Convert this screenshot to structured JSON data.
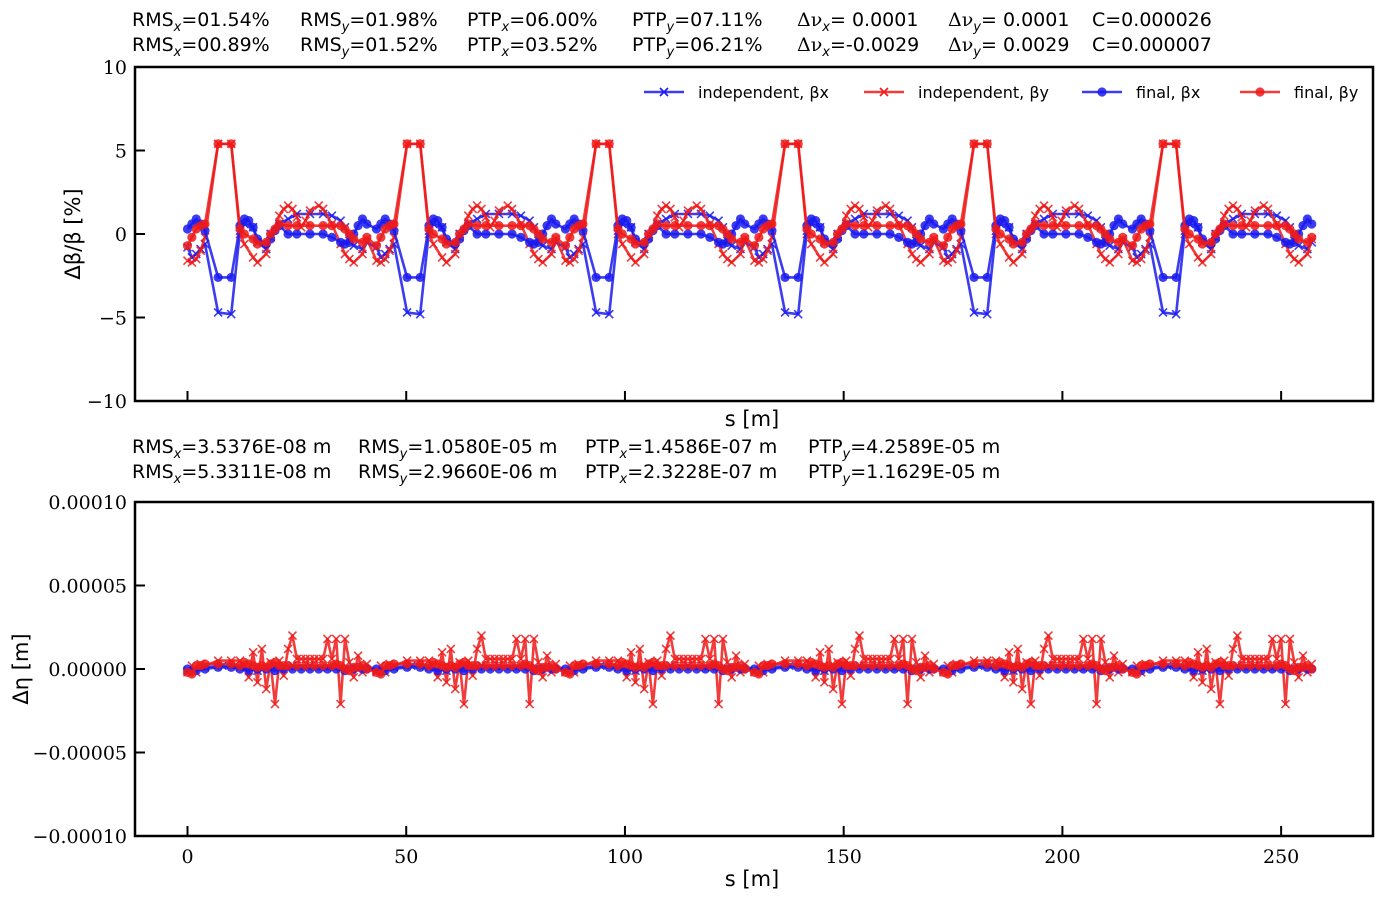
{
  "colors": {
    "blue": "#1a1aee",
    "red": "#ee1a1a",
    "axis": "#000000"
  },
  "top_stats": [
    {
      "rms_x": "01.54%",
      "rms_y": "01.98%",
      "ptp_x": "06.00%",
      "ptp_y": "07.11%",
      "dnu_x": "= 0.0001",
      "dnu_y": "= 0.0001",
      "c": "C=0.000026"
    },
    {
      "rms_x": "00.89%",
      "rms_y": "01.52%",
      "ptp_x": "03.52%",
      "ptp_y": "06.21%",
      "dnu_x": "=-0.0029",
      "dnu_y": "= 0.0029",
      "c": "C=0.000007"
    }
  ],
  "bottom_stats": [
    {
      "rms_x": "=3.5376E-08 m",
      "rms_y": "=1.0580E-05 m",
      "ptp_x": "=1.4586E-07 m",
      "ptp_y": "=4.2589E-05 m"
    },
    {
      "rms_x": "=5.3311E-08 m",
      "rms_y": "=2.9660E-06 m",
      "ptp_x": "=2.3228E-07 m",
      "ptp_y": "=1.1629E-05 m"
    }
  ],
  "labels": {
    "rms": "RMS",
    "ptp": "PTP",
    "sub_x": "x",
    "sub_y": "y",
    "eq": "=",
    "delta": "Δν",
    "dnu_x_sub": "x",
    "dnu_y_sub": "y"
  },
  "chart_data": [
    {
      "type": "line",
      "title": "",
      "xlabel": "s [m]",
      "ylabel": "Δβ/β [%]",
      "xlim": [
        -12,
        271
      ],
      "ylim": [
        -10,
        10
      ],
      "yticks": [
        -10,
        -5,
        0,
        5,
        10
      ],
      "ytick_labels": [
        "−10",
        "−5",
        "0",
        "5",
        "10"
      ],
      "xticks": [
        0,
        50,
        100,
        150,
        200,
        250
      ],
      "xtick_labels": [],
      "legend": [
        "independent, βx",
        "independent, βy",
        "final, βx",
        "final, βy"
      ],
      "legend_placement": "top-right",
      "n_cells": 6,
      "cell_length": 43.2,
      "series": [
        {
          "name": "independent, βx",
          "color": "blue",
          "marker": "x",
          "cell": [
            [
              0,
              -0.8
            ],
            [
              1,
              -1.4
            ],
            [
              2,
              -1.2
            ],
            [
              3,
              -0.9
            ],
            [
              4,
              -0.6
            ],
            [
              7,
              -4.7
            ],
            [
              10,
              -4.8
            ],
            [
              12,
              0.2
            ],
            [
              13,
              0.6
            ],
            [
              15,
              0.4
            ],
            [
              16,
              -0.5
            ],
            [
              18,
              -0.9
            ],
            [
              19,
              0.0
            ],
            [
              21,
              0.6
            ],
            [
              23,
              0.9
            ],
            [
              25,
              1.2
            ],
            [
              28,
              1.2
            ],
            [
              31,
              1.2
            ],
            [
              33,
              1.1
            ],
            [
              35,
              0.8
            ],
            [
              36,
              0.4
            ],
            [
              37,
              -0.4
            ],
            [
              38,
              -0.7
            ],
            [
              40,
              -0.9
            ],
            [
              41,
              -0.5
            ]
          ]
        },
        {
          "name": "independent, βy",
          "color": "red",
          "marker": "x",
          "cell": [
            [
              0,
              -1.6
            ],
            [
              1,
              -1.7
            ],
            [
              2,
              -1.5
            ],
            [
              3,
              -1.0
            ],
            [
              4,
              -0.2
            ],
            [
              7,
              5.4
            ],
            [
              10,
              5.4
            ],
            [
              12,
              0.0
            ],
            [
              13,
              -0.6
            ],
            [
              15,
              -1.4
            ],
            [
              16,
              -1.7
            ],
            [
              18,
              -1.2
            ],
            [
              19,
              -0.2
            ],
            [
              21,
              1.1
            ],
            [
              22,
              1.5
            ],
            [
              23,
              1.7
            ],
            [
              24,
              1.5
            ],
            [
              25,
              1.0
            ],
            [
              26,
              0.4
            ],
            [
              27,
              0.8
            ],
            [
              28,
              1.4
            ],
            [
              30,
              1.7
            ],
            [
              31,
              1.5
            ],
            [
              33,
              0.6
            ],
            [
              35,
              -0.6
            ],
            [
              36,
              -1.2
            ],
            [
              37,
              -1.5
            ],
            [
              38,
              -1.7
            ],
            [
              40,
              -1.2
            ],
            [
              41,
              -0.3
            ]
          ]
        },
        {
          "name": "final, βx",
          "color": "blue",
          "marker": "o",
          "cell": [
            [
              0,
              0.3
            ],
            [
              1,
              0.6
            ],
            [
              2,
              0.9
            ],
            [
              3,
              0.6
            ],
            [
              4,
              0.2
            ],
            [
              7,
              -2.6
            ],
            [
              10,
              -2.6
            ],
            [
              12,
              0.5
            ],
            [
              13,
              0.9
            ],
            [
              14,
              0.8
            ],
            [
              15,
              0.4
            ],
            [
              16,
              -0.3
            ],
            [
              18,
              -0.6
            ],
            [
              19,
              -0.3
            ],
            [
              20,
              0.2
            ],
            [
              21,
              0.5
            ],
            [
              23,
              0.0
            ],
            [
              25,
              0.0
            ],
            [
              28,
              0.0
            ],
            [
              31,
              0.0
            ],
            [
              33,
              -0.2
            ],
            [
              35,
              -0.5
            ],
            [
              36,
              -0.6
            ],
            [
              37,
              -0.5
            ],
            [
              38,
              0.0
            ],
            [
              39,
              0.5
            ],
            [
              40,
              0.9
            ],
            [
              41,
              0.6
            ]
          ]
        },
        {
          "name": "final, βy",
          "color": "red",
          "marker": "o",
          "cell": [
            [
              0,
              -0.7
            ],
            [
              1,
              -0.2
            ],
            [
              2,
              0.3
            ],
            [
              3,
              0.5
            ],
            [
              4,
              0.6
            ],
            [
              7,
              5.4
            ],
            [
              10,
              5.4
            ],
            [
              12,
              0.3
            ],
            [
              13,
              0.0
            ],
            [
              15,
              -0.3
            ],
            [
              16,
              -0.6
            ],
            [
              18,
              -0.5
            ],
            [
              19,
              0.0
            ],
            [
              20,
              0.3
            ],
            [
              21,
              0.6
            ],
            [
              23,
              0.5
            ],
            [
              25,
              0.5
            ],
            [
              28,
              0.5
            ],
            [
              31,
              0.5
            ],
            [
              33,
              0.5
            ],
            [
              35,
              0.5
            ],
            [
              36,
              0.3
            ],
            [
              37,
              0.0
            ],
            [
              38,
              -0.3
            ],
            [
              40,
              -0.5
            ],
            [
              41,
              -0.2
            ]
          ]
        }
      ]
    },
    {
      "type": "line",
      "title": "",
      "xlabel": "s [m]",
      "ylabel": "Δη [m]",
      "xlim": [
        -12,
        271
      ],
      "ylim": [
        -0.0001,
        0.0001
      ],
      "yticks": [
        -0.0001,
        -5e-05,
        0,
        5e-05,
        0.0001
      ],
      "ytick_labels": [
        "−0.00010",
        "−0.00005",
        "0.00000",
        "0.00005",
        "0.00010"
      ],
      "xticks": [
        0,
        50,
        100,
        150,
        200,
        250
      ],
      "xtick_labels": [
        "0",
        "50",
        "100",
        "150",
        "200",
        "250"
      ],
      "n_cells": 6,
      "cell_length": 43.2,
      "series": [
        {
          "name": "independent, βx",
          "color": "blue",
          "marker": "x",
          "cell": [
            [
              0,
              -1e-06
            ],
            [
              4,
              1e-06
            ],
            [
              8,
              2e-06
            ],
            [
              12,
              1e-06
            ],
            [
              16,
              -1e-06
            ],
            [
              20,
              1e-06
            ],
            [
              24,
              2e-06
            ],
            [
              28,
              2e-06
            ],
            [
              32,
              1e-06
            ],
            [
              36,
              0.0
            ],
            [
              40,
              1e-06
            ]
          ]
        },
        {
          "name": "independent, βy",
          "color": "red",
          "marker": "x",
          "cell": [
            [
              0,
              -2e-06
            ],
            [
              1,
              2e-06
            ],
            [
              2,
              -2e-06
            ],
            [
              3,
              3e-06
            ],
            [
              4,
              2e-06
            ],
            [
              7,
              5e-06
            ],
            [
              10,
              5e-06
            ],
            [
              12,
              5e-06
            ],
            [
              13,
              2e-06
            ],
            [
              14,
              -5e-06
            ],
            [
              15,
              1e-05
            ],
            [
              16,
              -8e-06
            ],
            [
              17,
              1.2e-05
            ],
            [
              18,
              -1.2e-05
            ],
            [
              19,
              4e-06
            ],
            [
              20,
              -2.1e-05
            ],
            [
              21,
              5e-06
            ],
            [
              22,
              -4e-06
            ],
            [
              23,
              1.2e-05
            ],
            [
              24,
              2e-05
            ],
            [
              25,
              6e-06
            ],
            [
              26,
              6e-06
            ],
            [
              27,
              6e-06
            ],
            [
              28,
              6e-06
            ],
            [
              29,
              6e-06
            ],
            [
              30,
              6e-06
            ],
            [
              31,
              6e-06
            ],
            [
              32,
              1.8e-05
            ],
            [
              33,
              6e-06
            ],
            [
              34,
              1.8e-05
            ],
            [
              35,
              -2.1e-05
            ],
            [
              36,
              1.8e-05
            ],
            [
              37,
              4e-06
            ],
            [
              38,
              -5e-06
            ],
            [
              39,
              8e-06
            ],
            [
              40,
              -2e-06
            ],
            [
              41,
              3e-06
            ]
          ]
        },
        {
          "name": "final, βx",
          "color": "blue",
          "marker": "o",
          "cell": [
            [
              0,
              0.0
            ],
            [
              2,
              -1e-06
            ],
            [
              4,
              0.0
            ],
            [
              7,
              1e-06
            ],
            [
              10,
              1e-06
            ],
            [
              12,
              0.0
            ],
            [
              14,
              -1e-06
            ],
            [
              16,
              0.0
            ],
            [
              18,
              0.0
            ],
            [
              20,
              -1e-06
            ],
            [
              22,
              0.0
            ],
            [
              24,
              0.0
            ],
            [
              26,
              0.0
            ],
            [
              28,
              0.0
            ],
            [
              30,
              0.0
            ],
            [
              32,
              0.0
            ],
            [
              34,
              0.0
            ],
            [
              36,
              -1e-06
            ],
            [
              38,
              0.0
            ],
            [
              40,
              0.0
            ],
            [
              41,
              0.0
            ]
          ]
        },
        {
          "name": "final, βy",
          "color": "red",
          "marker": "o",
          "cell": [
            [
              0,
              -2e-06
            ],
            [
              1,
              -3e-06
            ],
            [
              2,
              2e-06
            ],
            [
              3,
              2e-06
            ],
            [
              4,
              3e-06
            ],
            [
              7,
              3e-06
            ],
            [
              10,
              3e-06
            ],
            [
              12,
              2e-06
            ],
            [
              13,
              4e-06
            ],
            [
              14,
              3e-06
            ],
            [
              15,
              2e-06
            ],
            [
              16,
              1e-06
            ],
            [
              17,
              2e-06
            ],
            [
              18,
              1e-06
            ],
            [
              19,
              3e-06
            ],
            [
              20,
              4e-06
            ],
            [
              21,
              2e-06
            ],
            [
              22,
              2e-06
            ],
            [
              23,
              2e-06
            ],
            [
              25,
              2e-06
            ],
            [
              27,
              2e-06
            ],
            [
              29,
              2e-06
            ],
            [
              31,
              2e-06
            ],
            [
              33,
              2e-06
            ],
            [
              34,
              3e-06
            ],
            [
              35,
              2e-06
            ],
            [
              36,
              0.0
            ],
            [
              37,
              -1e-06
            ],
            [
              38,
              1e-06
            ],
            [
              39,
              1e-06
            ],
            [
              40,
              2e-06
            ],
            [
              41,
              0.0
            ]
          ]
        }
      ]
    }
  ]
}
